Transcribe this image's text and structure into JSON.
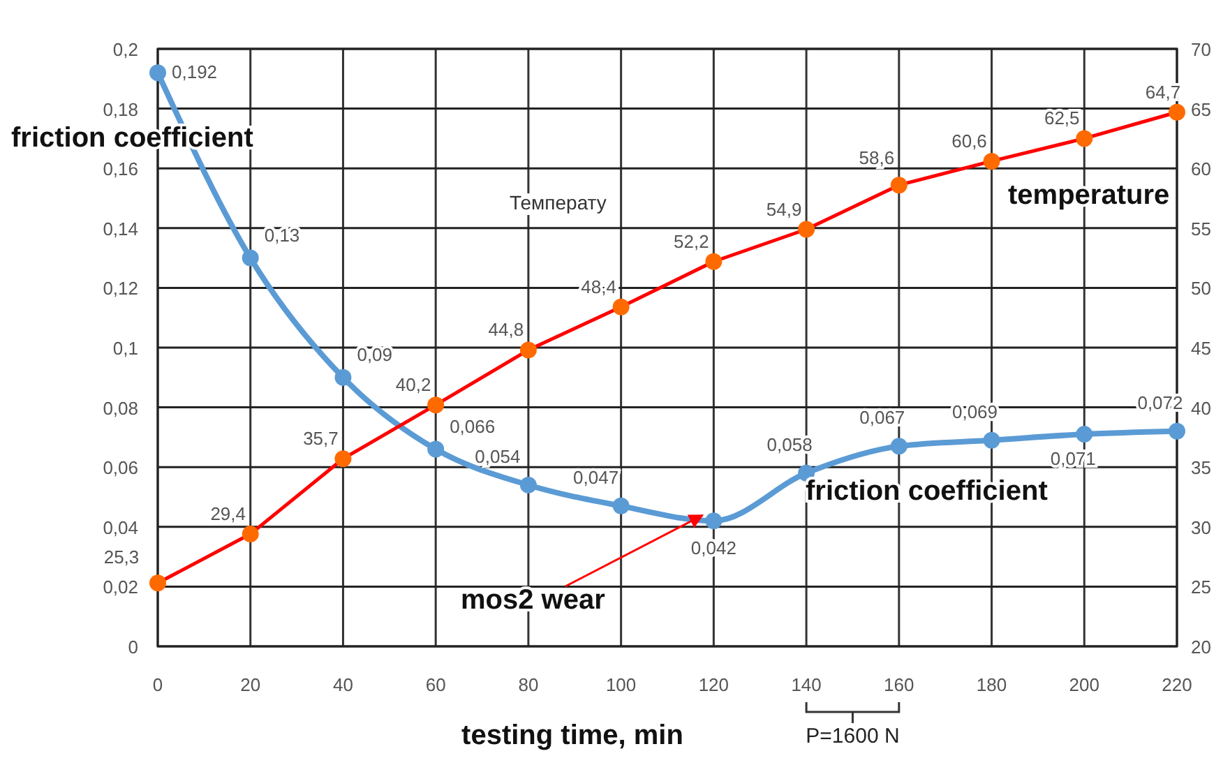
{
  "chart_data": {
    "type": "line",
    "xlabel": "testing time, min",
    "x": [
      0,
      20,
      40,
      60,
      80,
      100,
      120,
      140,
      160,
      180,
      200,
      220
    ],
    "xlim": [
      0,
      220
    ],
    "xticks": [
      0,
      20,
      40,
      60,
      80,
      100,
      120,
      140,
      160,
      180,
      200,
      220
    ],
    "ylim": [
      0,
      0.2
    ],
    "yticks": [
      0,
      {
        "value": 0.02,
        "label": "0,02"
      },
      {
        "value": 0.04,
        "label": "0,04"
      },
      {
        "value": 0.06,
        "label": "0,06"
      },
      {
        "value": 0.08,
        "label": "0,08"
      },
      {
        "value": 0.1,
        "label": "0,1"
      },
      {
        "value": 0.12,
        "label": "0,12"
      },
      {
        "value": 0.14,
        "label": "0,14"
      },
      {
        "value": 0.16,
        "label": "0,16"
      },
      {
        "value": 0.18,
        "label": "0,18"
      },
      {
        "value": 0.2,
        "label": "0,2"
      }
    ],
    "y2lim": [
      20,
      70
    ],
    "y2ticks": [
      20,
      25,
      30,
      35,
      40,
      45,
      50,
      55,
      60,
      65,
      70
    ],
    "grid": true,
    "marker": "circle",
    "series": [
      {
        "name": "friction coefficient",
        "color": "#5b9bd5",
        "values": [
          0.192,
          0.13,
          0.09,
          0.066,
          0.054,
          0.047,
          0.042,
          0.058,
          0.067,
          0.069,
          0.071,
          0.072
        ],
        "value_labels": [
          "0,192",
          "0,13",
          "0,09",
          "0,066",
          "0,054",
          "0,047",
          "0,042",
          "0,058",
          "0,067",
          "0,069",
          "0,071",
          "0,072"
        ]
      },
      {
        "name": "temperature",
        "color": "#ff0000",
        "axis": "y2",
        "values": [
          25.3,
          29.4,
          35.7,
          40.2,
          44.8,
          48.4,
          52.2,
          54.9,
          58.6,
          60.6,
          62.5,
          64.7
        ],
        "value_labels": [
          "25,3",
          "29,4",
          "35,7",
          "40,2",
          "44,8",
          "48,4",
          "52,2",
          "54,9",
          "58,6",
          "60,6",
          "62,5",
          "64,7"
        ]
      }
    ],
    "annotations": [
      "friction coefficient",
      "Температу",
      {
        "text": "mos2 wear",
        "x": 120,
        "y": 0.042
      },
      "P=1600 N"
    ]
  }
}
